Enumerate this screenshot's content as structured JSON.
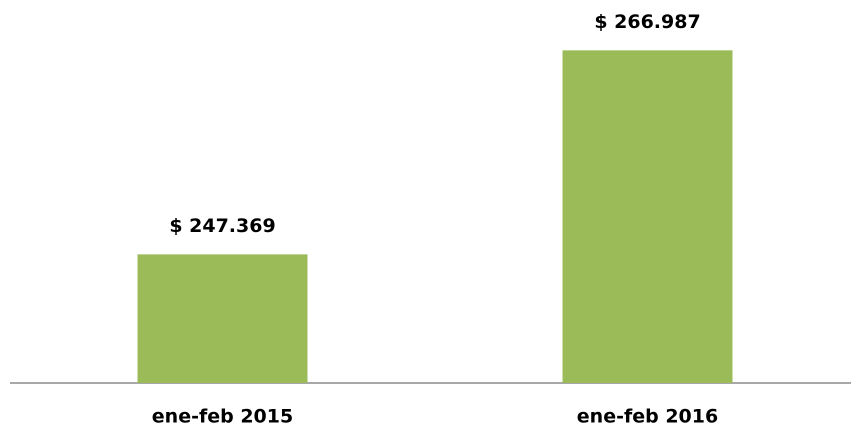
{
  "chart_data": {
    "type": "bar",
    "categories": [
      "ene-feb 2015",
      "ene-feb 2016"
    ],
    "values": [
      247369,
      266987
    ],
    "value_labels": [
      "$ 247.369",
      "$ 266.987"
    ],
    "color": "#9bbb59",
    "ylim": [
      235000,
      270000
    ]
  }
}
